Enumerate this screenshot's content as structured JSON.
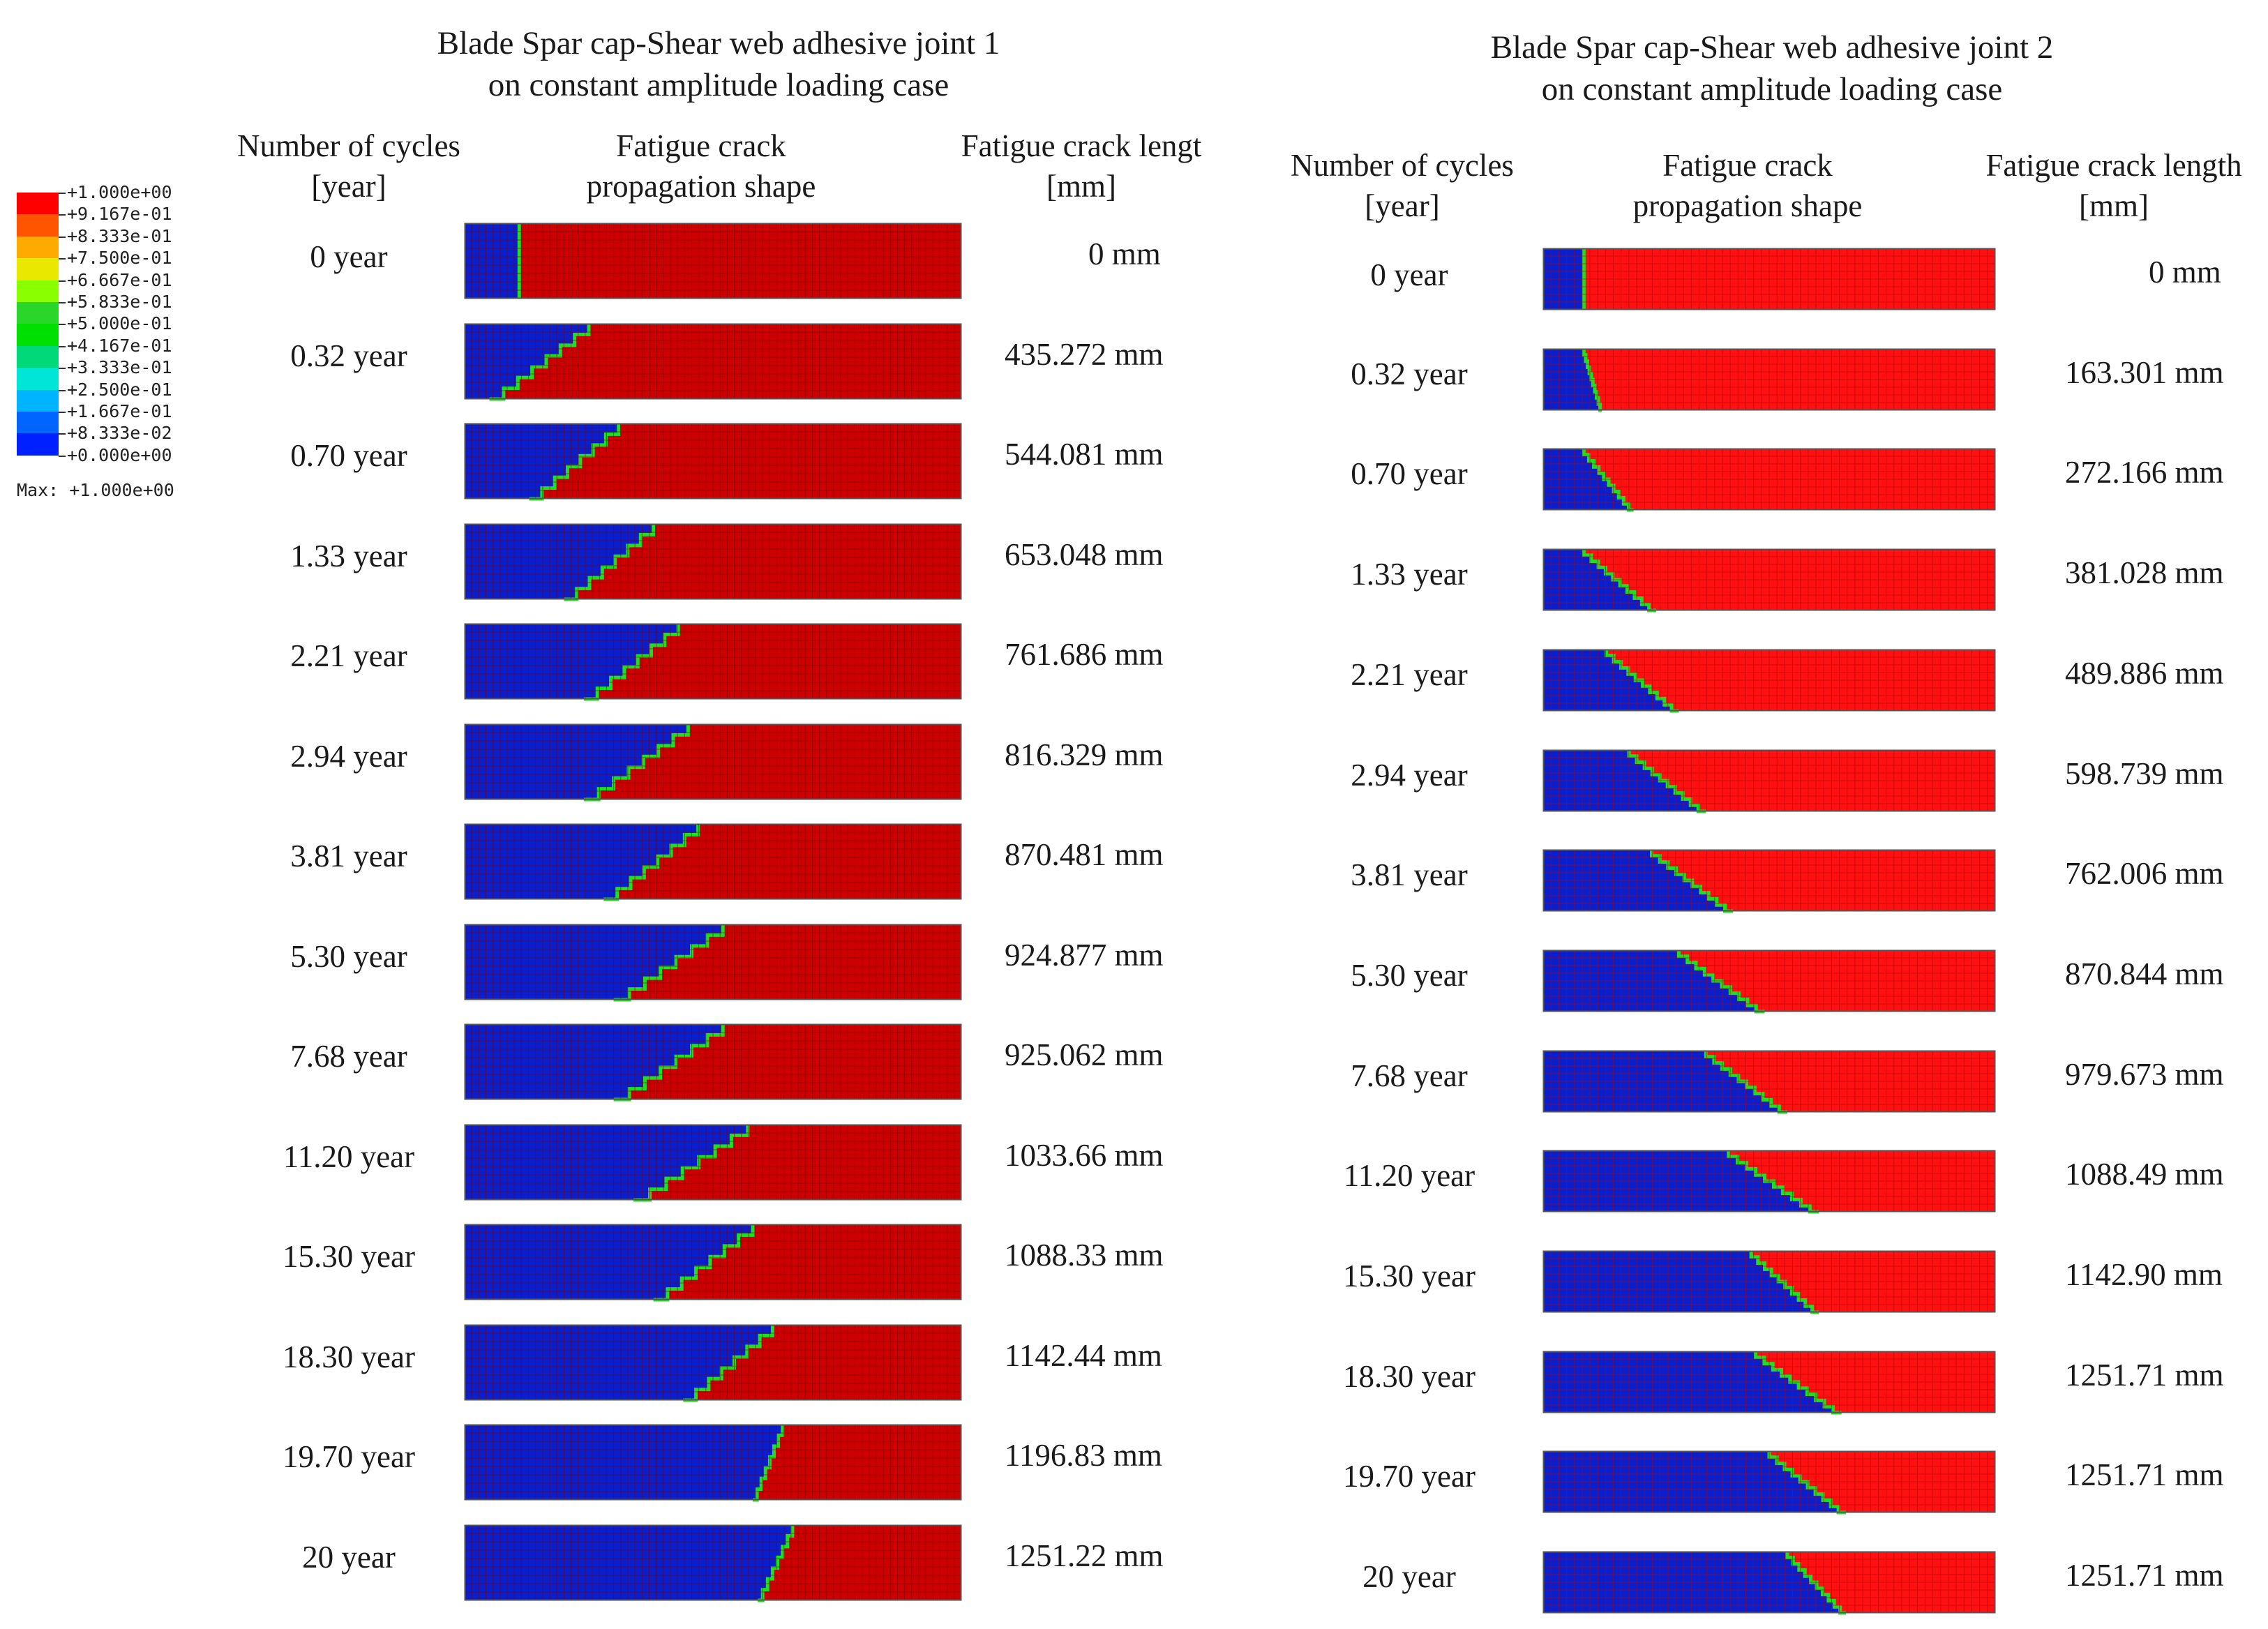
{
  "legend": {
    "values": [
      "+1.000e+00",
      "+9.167e-01",
      "+8.333e-01",
      "+7.500e-01",
      "+6.667e-01",
      "+5.833e-01",
      "+5.000e-01",
      "+4.167e-01",
      "+3.333e-01",
      "+2.500e-01",
      "+1.667e-01",
      "+8.333e-02",
      "+0.000e+00"
    ],
    "colors": [
      "#ff0000",
      "#ff5500",
      "#ffaa00",
      "#e8e800",
      "#8aff00",
      "#2bd62b",
      "#00e000",
      "#00d87a",
      "#00e6d6",
      "#00b4ff",
      "#0064ff",
      "#0020ff"
    ],
    "max_label": "Max: +1.000e+00"
  },
  "colors": {
    "intact_joint1": "#cc0000",
    "intact_joint2": "#ff1111",
    "debonded": "#0a1ecc",
    "front": "#22dd22",
    "mesh_joint1": "#7a0000",
    "mesh_joint2": "#b30000"
  },
  "panels": [
    {
      "title_line1": "Blade Spar cap-Shear web adhesive joint 1",
      "title_line2": "on constant amplitude loading case",
      "col_cycles_line1": "Number of cycles",
      "col_cycles_line2": "[year]",
      "col_shape_line1": "Fatigue crack",
      "col_shape_line2": "propagation shape",
      "col_length_line1": "Fatigue crack lengt",
      "col_length_line2": "[mm]",
      "rows": [
        {
          "cycles": "0 year",
          "crack_length": "0 mm",
          "front_top": 0.11,
          "front_bottom": 0.11
        },
        {
          "cycles": "0.32 year",
          "crack_length": "435.272 mm",
          "front_top": 0.25,
          "front_bottom": 0.05
        },
        {
          "cycles": "0.70 year",
          "crack_length": "544.081 mm",
          "front_top": 0.31,
          "front_bottom": 0.13
        },
        {
          "cycles": "1.33 year",
          "crack_length": "653.048 mm",
          "front_top": 0.38,
          "front_bottom": 0.2
        },
        {
          "cycles": "2.21 year",
          "crack_length": "761.686 mm",
          "front_top": 0.43,
          "front_bottom": 0.24
        },
        {
          "cycles": "2.94 year",
          "crack_length": "816.329 mm",
          "front_top": 0.45,
          "front_bottom": 0.24
        },
        {
          "cycles": "3.81 year",
          "crack_length": "870.481 mm",
          "front_top": 0.47,
          "front_bottom": 0.28
        },
        {
          "cycles": "5.30 year",
          "crack_length": "924.877 mm",
          "front_top": 0.52,
          "front_bottom": 0.3
        },
        {
          "cycles": "7.68  year",
          "crack_length": "925.062 mm",
          "front_top": 0.52,
          "front_bottom": 0.3
        },
        {
          "cycles": "11.20 year",
          "crack_length": "1033.66 mm",
          "front_top": 0.57,
          "front_bottom": 0.34
        },
        {
          "cycles": "15.30 year",
          "crack_length": "1088.33 mm",
          "front_top": 0.58,
          "front_bottom": 0.38
        },
        {
          "cycles": "18.30 year",
          "crack_length": "1142.44 mm",
          "front_top": 0.62,
          "front_bottom": 0.44
        },
        {
          "cycles": "19.70 year",
          "crack_length": "1196.83 mm",
          "front_top": 0.64,
          "front_bottom": 0.58
        },
        {
          "cycles": "20 year",
          "crack_length": "1251.22 mm",
          "front_top": 0.66,
          "front_bottom": 0.59
        }
      ]
    },
    {
      "title_line1": "Blade Spar cap-Shear web adhesive joint 2",
      "title_line2": "on constant amplitude loading case",
      "col_cycles_line1": "Number of cycles",
      "col_cycles_line2": "[year]",
      "col_shape_line1": "Fatigue crack",
      "col_shape_line2": "propagation shape",
      "col_length_line1": "Fatigue crack length",
      "col_length_line2": "[mm]",
      "rows": [
        {
          "cycles": "0 year",
          "crack_length": "0 mm",
          "front_top": 0.09,
          "front_bottom": 0.09
        },
        {
          "cycles": "0.32 year",
          "crack_length": "163.301 mm",
          "front_top": 0.09,
          "front_bottom": 0.13
        },
        {
          "cycles": "0.70 year",
          "crack_length": "272.166 mm",
          "front_top": 0.09,
          "front_bottom": 0.2
        },
        {
          "cycles": "1.33 year",
          "crack_length": "381.028 mm",
          "front_top": 0.09,
          "front_bottom": 0.25
        },
        {
          "cycles": "2.21 year",
          "crack_length": "489.886 mm",
          "front_top": 0.14,
          "front_bottom": 0.3
        },
        {
          "cycles": "2.94 year",
          "crack_length": "598.739 mm",
          "front_top": 0.19,
          "front_bottom": 0.36
        },
        {
          "cycles": "3.81 year",
          "crack_length": "762.006 mm",
          "front_top": 0.24,
          "front_bottom": 0.42
        },
        {
          "cycles": "5.30 year",
          "crack_length": "870.844 mm",
          "front_top": 0.3,
          "front_bottom": 0.49
        },
        {
          "cycles": "7.68  year",
          "crack_length": "979.673 mm",
          "front_top": 0.36,
          "front_bottom": 0.54
        },
        {
          "cycles": "11.20 year",
          "crack_length": "1088.49 mm",
          "front_top": 0.41,
          "front_bottom": 0.61
        },
        {
          "cycles": "15.30 year",
          "crack_length": "1142.90 mm",
          "front_top": 0.46,
          "front_bottom": 0.61
        },
        {
          "cycles": "18.30 year",
          "crack_length": "1251.71 mm",
          "front_top": 0.47,
          "front_bottom": 0.66
        },
        {
          "cycles": "19.70 year",
          "crack_length": "1251.71 mm",
          "front_top": 0.5,
          "front_bottom": 0.67
        },
        {
          "cycles": "20 year",
          "crack_length": "1251.71 mm",
          "front_top": 0.54,
          "front_bottom": 0.67
        }
      ]
    }
  ]
}
